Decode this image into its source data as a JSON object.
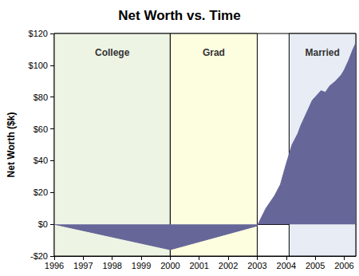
{
  "chart_data": {
    "type": "area",
    "title": "Net Worth vs. Time",
    "y_label": "Net Worth ($k)",
    "x": [
      1996,
      2000,
      2003,
      2003.3,
      2003.6,
      2003.8,
      2004,
      2004.2,
      2004.4,
      2004.5,
      2004.7,
      2004.9,
      2005.1,
      2005.2,
      2005.35,
      2005.5,
      2005.7,
      2005.9,
      2006,
      2006.15,
      2006.3,
      2006.4
    ],
    "values": [
      0,
      -16,
      -1,
      10,
      18,
      25,
      38,
      50,
      57,
      62,
      70,
      78,
      82,
      84,
      83,
      87,
      90,
      94,
      97,
      103,
      110,
      114
    ],
    "color": "#666699",
    "xlim": [
      1996,
      2006.4
    ],
    "xticks": [
      1996,
      1997,
      1998,
      1999,
      2000,
      2001,
      2002,
      2003,
      2004,
      2005,
      2006
    ],
    "ylim": [
      -20,
      120
    ],
    "yticks": [
      {
        "value": -20,
        "label": "-$20"
      },
      {
        "value": 0,
        "label": "$0"
      },
      {
        "value": 20,
        "label": "$20"
      },
      {
        "value": 40,
        "label": "$40"
      },
      {
        "value": 60,
        "label": "$60"
      },
      {
        "value": 80,
        "label": "$80"
      },
      {
        "value": 100,
        "label": "$100"
      },
      {
        "value": 120,
        "label": "$120"
      }
    ],
    "grid": false,
    "periods": [
      {
        "label": "College",
        "start": 1996,
        "end": 2000,
        "color": "#eef4e4"
      },
      {
        "label": "Grad",
        "start": 2000,
        "end": 2003,
        "color": "#fdfde0"
      },
      {
        "label": "Married",
        "start": 2004.1,
        "end": 2006.4,
        "color": "#e8ecf4"
      }
    ]
  }
}
